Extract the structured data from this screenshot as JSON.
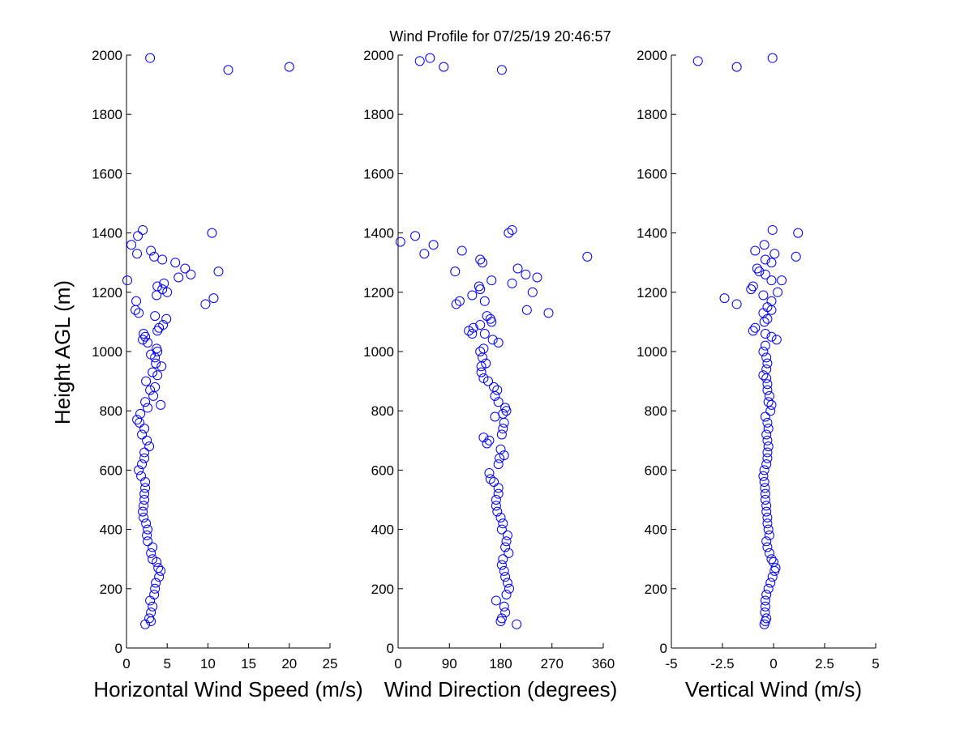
{
  "figure": {
    "title": "Wind Profile for  07/25/19 20:46:57",
    "ylabel": "Height AGL (m)"
  },
  "chart_data": [
    {
      "type": "scatter",
      "xlabel": "Horizontal Wind Speed (m/s)",
      "ylabel": "Height AGL (m)",
      "xlim": [
        0,
        25
      ],
      "ylim": [
        0,
        2000
      ],
      "xticks": [
        "0",
        "5",
        "10",
        "15",
        "20",
        "25"
      ],
      "yticks": [
        "0",
        "200",
        "400",
        "600",
        "800",
        "1000",
        "1200",
        "1400",
        "1600",
        "1800",
        "2000"
      ],
      "marker_color": "#0000ff",
      "points": [
        [
          2.3,
          80
        ],
        [
          3.0,
          90
        ],
        [
          2.8,
          100
        ],
        [
          3.0,
          120
        ],
        [
          3.2,
          140
        ],
        [
          2.9,
          160
        ],
        [
          3.4,
          180
        ],
        [
          3.5,
          200
        ],
        [
          3.6,
          220
        ],
        [
          4.0,
          240
        ],
        [
          4.2,
          260
        ],
        [
          3.9,
          270
        ],
        [
          3.7,
          290
        ],
        [
          3.2,
          300
        ],
        [
          3.0,
          320
        ],
        [
          3.2,
          340
        ],
        [
          2.6,
          360
        ],
        [
          2.5,
          380
        ],
        [
          2.6,
          400
        ],
        [
          2.4,
          420
        ],
        [
          2.1,
          440
        ],
        [
          2.0,
          460
        ],
        [
          2.1,
          480
        ],
        [
          2.2,
          500
        ],
        [
          2.2,
          520
        ],
        [
          2.3,
          540
        ],
        [
          2.3,
          560
        ],
        [
          1.8,
          580
        ],
        [
          1.5,
          600
        ],
        [
          1.9,
          620
        ],
        [
          2.2,
          640
        ],
        [
          2.2,
          660
        ],
        [
          2.8,
          680
        ],
        [
          2.5,
          700
        ],
        [
          1.9,
          720
        ],
        [
          2.2,
          740
        ],
        [
          1.6,
          760
        ],
        [
          1.3,
          770
        ],
        [
          1.7,
          790
        ],
        [
          2.6,
          810
        ],
        [
          2.3,
          830
        ],
        [
          3.3,
          850
        ],
        [
          2.9,
          870
        ],
        [
          4.2,
          820
        ],
        [
          3.5,
          880
        ],
        [
          2.4,
          900
        ],
        [
          3.8,
          920
        ],
        [
          3.2,
          930
        ],
        [
          4.3,
          950
        ],
        [
          3.6,
          960
        ],
        [
          3.5,
          980
        ],
        [
          3.0,
          990
        ],
        [
          3.8,
          1000
        ],
        [
          3.7,
          1010
        ],
        [
          2.6,
          1030
        ],
        [
          2.0,
          1040
        ],
        [
          2.3,
          1050
        ],
        [
          2.1,
          1060
        ],
        [
          3.8,
          1070
        ],
        [
          4.0,
          1080
        ],
        [
          4.5,
          1090
        ],
        [
          3.5,
          1120
        ],
        [
          4.9,
          1110
        ],
        [
          1.1,
          1140
        ],
        [
          1.5,
          1130
        ],
        [
          10.7,
          1180
        ],
        [
          9.7,
          1160
        ],
        [
          1.2,
          1170
        ],
        [
          5.0,
          1200
        ],
        [
          3.7,
          1190
        ],
        [
          4.4,
          1210
        ],
        [
          3.8,
          1220
        ],
        [
          4.6,
          1230
        ],
        [
          6.4,
          1250
        ],
        [
          7.9,
          1260
        ],
        [
          11.3,
          1270
        ],
        [
          7.2,
          1280
        ],
        [
          4.4,
          1310
        ],
        [
          6.0,
          1300
        ],
        [
          3.4,
          1320
        ],
        [
          3.0,
          1340
        ],
        [
          1.3,
          1330
        ],
        [
          0.6,
          1360
        ],
        [
          1.4,
          1390
        ],
        [
          10.5,
          1400
        ],
        [
          2.0,
          1410
        ],
        [
          0.1,
          1240
        ],
        [
          12.5,
          1950
        ],
        [
          20.0,
          1960
        ],
        [
          2.9,
          1990
        ]
      ]
    },
    {
      "type": "scatter",
      "xlabel": "Wind Direction (degrees)",
      "ylabel": "Height AGL (m)",
      "xlim": [
        0,
        360
      ],
      "ylim": [
        0,
        2000
      ],
      "xticks": [
        "0",
        "90",
        "180",
        "270",
        "360"
      ],
      "yticks": [
        "0",
        "200",
        "400",
        "600",
        "800",
        "1000",
        "1200",
        "1400",
        "1600",
        "1800",
        "2000"
      ],
      "marker_color": "#0000ff",
      "points": [
        [
          208,
          80
        ],
        [
          180,
          90
        ],
        [
          182,
          100
        ],
        [
          188,
          120
        ],
        [
          186,
          140
        ],
        [
          172,
          160
        ],
        [
          190,
          180
        ],
        [
          195,
          200
        ],
        [
          192,
          220
        ],
        [
          188,
          240
        ],
        [
          186,
          260
        ],
        [
          182,
          280
        ],
        [
          184,
          300
        ],
        [
          194,
          320
        ],
        [
          188,
          340
        ],
        [
          190,
          360
        ],
        [
          192,
          380
        ],
        [
          182,
          400
        ],
        [
          184,
          420
        ],
        [
          180,
          440
        ],
        [
          174,
          460
        ],
        [
          172,
          480
        ],
        [
          172,
          500
        ],
        [
          176,
          520
        ],
        [
          176,
          540
        ],
        [
          168,
          560
        ],
        [
          162,
          570
        ],
        [
          160,
          590
        ],
        [
          176,
          620
        ],
        [
          178,
          640
        ],
        [
          186,
          650
        ],
        [
          180,
          670
        ],
        [
          156,
          690
        ],
        [
          160,
          700
        ],
        [
          150,
          710
        ],
        [
          182,
          720
        ],
        [
          184,
          740
        ],
        [
          186,
          760
        ],
        [
          170,
          780
        ],
        [
          184,
          790
        ],
        [
          190,
          800
        ],
        [
          188,
          810
        ],
        [
          176,
          830
        ],
        [
          170,
          850
        ],
        [
          174,
          870
        ],
        [
          168,
          880
        ],
        [
          158,
          900
        ],
        [
          150,
          910
        ],
        [
          146,
          930
        ],
        [
          146,
          950
        ],
        [
          154,
          960
        ],
        [
          148,
          980
        ],
        [
          144,
          1000
        ],
        [
          150,
          1010
        ],
        [
          176,
          1030
        ],
        [
          166,
          1040
        ],
        [
          152,
          1060
        ],
        [
          130,
          1060
        ],
        [
          124,
          1070
        ],
        [
          132,
          1080
        ],
        [
          144,
          1090
        ],
        [
          164,
          1100
        ],
        [
          162,
          1110
        ],
        [
          156,
          1120
        ],
        [
          264,
          1130
        ],
        [
          226,
          1140
        ],
        [
          102,
          1160
        ],
        [
          108,
          1170
        ],
        [
          152,
          1170
        ],
        [
          130,
          1190
        ],
        [
          236,
          1200
        ],
        [
          144,
          1210
        ],
        [
          142,
          1220
        ],
        [
          200,
          1230
        ],
        [
          164,
          1240
        ],
        [
          244,
          1250
        ],
        [
          224,
          1260
        ],
        [
          100,
          1270
        ],
        [
          210,
          1280
        ],
        [
          148,
          1300
        ],
        [
          144,
          1310
        ],
        [
          332,
          1320
        ],
        [
          46,
          1330
        ],
        [
          112,
          1340
        ],
        [
          62,
          1360
        ],
        [
          4,
          1370
        ],
        [
          30,
          1390
        ],
        [
          194,
          1400
        ],
        [
          200,
          1410
        ],
        [
          38,
          1980
        ],
        [
          56,
          1990
        ],
        [
          80,
          1960
        ],
        [
          182,
          1950
        ]
      ]
    },
    {
      "type": "scatter",
      "xlabel": "Vertical Wind (m/s)",
      "ylabel": "Height AGL (m)",
      "xlim": [
        -5,
        5
      ],
      "ylim": [
        0,
        2000
      ],
      "xticks": [
        "-5",
        "-2.5",
        "0",
        "2.5",
        "5"
      ],
      "yticks": [
        "0",
        "200",
        "400",
        "600",
        "800",
        "1000",
        "1200",
        "1400",
        "1600",
        "1800",
        "2000"
      ],
      "marker_color": "#0000ff",
      "points": [
        [
          -0.45,
          80
        ],
        [
          -0.4,
          90
        ],
        [
          -0.35,
          100
        ],
        [
          -0.42,
          120
        ],
        [
          -0.4,
          140
        ],
        [
          -0.4,
          160
        ],
        [
          -0.35,
          180
        ],
        [
          -0.25,
          200
        ],
        [
          -0.15,
          220
        ],
        [
          -0.05,
          240
        ],
        [
          0.05,
          260
        ],
        [
          0.1,
          270
        ],
        [
          0.0,
          290
        ],
        [
          -0.1,
          300
        ],
        [
          -0.2,
          320
        ],
        [
          -0.3,
          340
        ],
        [
          -0.35,
          360
        ],
        [
          -0.2,
          380
        ],
        [
          -0.25,
          400
        ],
        [
          -0.3,
          420
        ],
        [
          -0.3,
          440
        ],
        [
          -0.35,
          460
        ],
        [
          -0.35,
          480
        ],
        [
          -0.4,
          500
        ],
        [
          -0.4,
          520
        ],
        [
          -0.42,
          540
        ],
        [
          -0.45,
          560
        ],
        [
          -0.5,
          580
        ],
        [
          -0.45,
          600
        ],
        [
          -0.35,
          620
        ],
        [
          -0.3,
          640
        ],
        [
          -0.3,
          660
        ],
        [
          -0.25,
          680
        ],
        [
          -0.3,
          700
        ],
        [
          -0.35,
          720
        ],
        [
          -0.25,
          740
        ],
        [
          -0.3,
          760
        ],
        [
          -0.4,
          780
        ],
        [
          -0.15,
          800
        ],
        [
          -0.1,
          820
        ],
        [
          -0.25,
          830
        ],
        [
          -0.2,
          850
        ],
        [
          -0.3,
          870
        ],
        [
          -0.3,
          890
        ],
        [
          -0.35,
          910
        ],
        [
          -0.5,
          920
        ],
        [
          -0.35,
          940
        ],
        [
          -0.3,
          960
        ],
        [
          -0.35,
          980
        ],
        [
          -0.5,
          1000
        ],
        [
          -0.4,
          1020
        ],
        [
          0.15,
          1040
        ],
        [
          -0.1,
          1050
        ],
        [
          -0.4,
          1060
        ],
        [
          -1.0,
          1070
        ],
        [
          -0.9,
          1080
        ],
        [
          -0.45,
          1100
        ],
        [
          -0.3,
          1110
        ],
        [
          -0.5,
          1130
        ],
        [
          -0.1,
          1140
        ],
        [
          -0.3,
          1150
        ],
        [
          -1.8,
          1160
        ],
        [
          -0.1,
          1170
        ],
        [
          -2.4,
          1180
        ],
        [
          0.2,
          1200
        ],
        [
          -0.5,
          1190
        ],
        [
          -1.1,
          1210
        ],
        [
          -1.0,
          1220
        ],
        [
          -0.1,
          1240
        ],
        [
          0.4,
          1240
        ],
        [
          -0.4,
          1260
        ],
        [
          -0.7,
          1270
        ],
        [
          -0.8,
          1280
        ],
        [
          -0.1,
          1300
        ],
        [
          -0.4,
          1310
        ],
        [
          1.1,
          1320
        ],
        [
          0.05,
          1330
        ],
        [
          -0.9,
          1340
        ],
        [
          -0.45,
          1360
        ],
        [
          1.2,
          1400
        ],
        [
          -0.05,
          1410
        ],
        [
          -3.7,
          1980
        ],
        [
          -1.8,
          1960
        ],
        [
          -0.05,
          1990
        ]
      ]
    }
  ]
}
